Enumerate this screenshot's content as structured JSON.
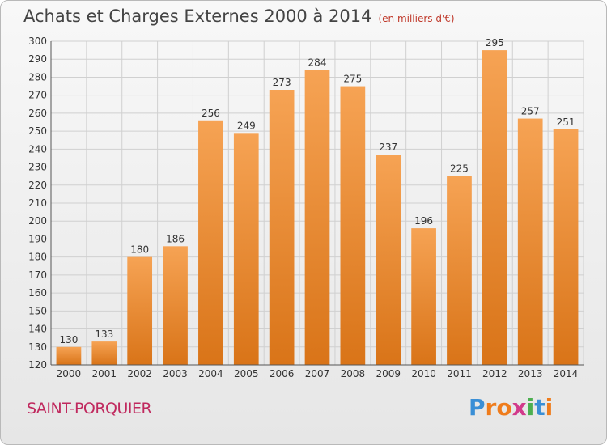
{
  "title": "Achats et Charges Externes 2000 à 2014",
  "subtitle": "(en milliers d'€)",
  "town": "SAINT-PORQUIER",
  "logo": {
    "text": "Proxiti",
    "letters": [
      "P",
      "r",
      "o",
      "x",
      "i",
      "t",
      "i"
    ],
    "colors": [
      "#3a8fd6",
      "#ef7c1c",
      "#ef7c1c",
      "#d23a8b",
      "#4caf50",
      "#3a8fd6",
      "#ef7c1c"
    ]
  },
  "colors": {
    "bar_top": "#f6a354",
    "bar_bottom": "#d97418",
    "grid": "#d0d0d0",
    "axis_text": "#333333"
  },
  "chart_data": {
    "type": "bar",
    "title": "Achats et Charges Externes 2000 à 2014",
    "subtitle": "(en milliers d'€)",
    "categories": [
      "2000",
      "2001",
      "2002",
      "2003",
      "2004",
      "2005",
      "2006",
      "2007",
      "2008",
      "2009",
      "2010",
      "2011",
      "2012",
      "2013",
      "2014"
    ],
    "values": [
      130,
      133,
      180,
      186,
      256,
      249,
      273,
      284,
      275,
      237,
      196,
      225,
      295,
      257,
      251
    ],
    "ylim": [
      120,
      300
    ],
    "yticks": [
      120,
      130,
      140,
      150,
      160,
      170,
      180,
      190,
      200,
      210,
      220,
      230,
      240,
      250,
      260,
      270,
      280,
      290,
      300
    ],
    "grid": true,
    "data_labels": true
  }
}
